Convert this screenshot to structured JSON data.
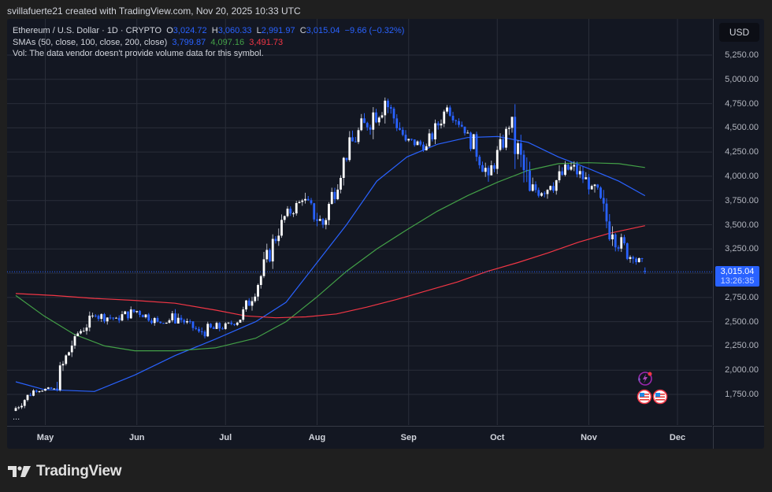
{
  "credit": "svillafuerte21 created with TradingView.com, Nov 20, 2025 10:33 UTC",
  "legend": {
    "symbol": "Ethereum / U.S. Dollar · 1D · CRYPTO",
    "o_label": "O",
    "o": "3,024.72",
    "h_label": "H",
    "h": "3,060.33",
    "l_label": "L",
    "l": "2,991.97",
    "c_label": "C",
    "c": "3,015.04",
    "change": "−9.66 (−0.32%)",
    "sma_label": "SMAs (50, close, 100, close, 200, close)",
    "sma50": "3,799.87",
    "sma100": "4,097.16",
    "sma200": "3,491.73",
    "vol": "Vol: The data vendor doesn't provide volume data for this symbol."
  },
  "yaxis": {
    "currency": "USD",
    "ticks": [
      "5,250.00",
      "5,000.00",
      "4,750.00",
      "4,500.00",
      "4,250.00",
      "4,000.00",
      "3,750.00",
      "3,500.00",
      "3,250.00",
      "2,750.00",
      "2,500.00",
      "2,250.00",
      "2,000.00",
      "1,750.00"
    ],
    "price_tag": "3,015.04",
    "countdown": "13:26:35"
  },
  "xaxis": {
    "ticks": [
      "May",
      "Jun",
      "Jul",
      "Aug",
      "Sep",
      "Oct",
      "Nov",
      "Dec"
    ]
  },
  "more": "...",
  "footer": {
    "brand": "TradingView"
  },
  "colors": {
    "up": "#ffffff",
    "down": "#2962ff",
    "sma50": "#2962ff",
    "sma100": "#43a047",
    "sma200": "#f23645",
    "background": "#131722",
    "grid": "#2a2e39"
  },
  "chart_data": {
    "type": "candlestick",
    "title": "Ethereum / U.S. Dollar · 1D · CRYPTO",
    "ylabel": "USD",
    "ylim": [
      1600,
      5400
    ],
    "grid": true,
    "x_ticks": [
      "May",
      "Jun",
      "Jul",
      "Aug",
      "Sep",
      "Oct",
      "Nov",
      "Dec"
    ],
    "y_ticks": [
      1750,
      2000,
      2250,
      2500,
      2750,
      3000,
      3250,
      3500,
      3750,
      4000,
      4250,
      4500,
      4750,
      5000,
      5250
    ],
    "last": {
      "open": 3024.72,
      "high": 3060.33,
      "low": 2991.97,
      "close": 3015.04,
      "change": -9.66,
      "change_pct": -0.32
    },
    "legend": [
      "SMA 50 (3,799.87)",
      "SMA 100 (4,097.16)",
      "SMA 200 (3,491.73)"
    ],
    "ohlc_weekly_approx": [
      {
        "date": "2025-04-21",
        "open": 1580,
        "high": 1820,
        "low": 1560,
        "close": 1790
      },
      {
        "date": "2025-04-28",
        "open": 1790,
        "high": 1860,
        "low": 1760,
        "close": 1810
      },
      {
        "date": "2025-05-05",
        "open": 1810,
        "high": 2410,
        "low": 1780,
        "close": 2350
      },
      {
        "date": "2025-05-12",
        "open": 2350,
        "high": 2730,
        "low": 2350,
        "close": 2560
      },
      {
        "date": "2025-05-19",
        "open": 2560,
        "high": 2720,
        "low": 2440,
        "close": 2540
      },
      {
        "date": "2025-05-26",
        "open": 2540,
        "high": 2790,
        "low": 2480,
        "close": 2610
      },
      {
        "date": "2025-06-02",
        "open": 2610,
        "high": 2700,
        "low": 2440,
        "close": 2500
      },
      {
        "date": "2025-06-09",
        "open": 2500,
        "high": 2880,
        "low": 2480,
        "close": 2540
      },
      {
        "date": "2025-06-16",
        "open": 2540,
        "high": 2600,
        "low": 2350,
        "close": 2400
      },
      {
        "date": "2025-06-23",
        "open": 2400,
        "high": 2500,
        "low": 2120,
        "close": 2430
      },
      {
        "date": "2025-06-30",
        "open": 2430,
        "high": 2560,
        "low": 2370,
        "close": 2520
      },
      {
        "date": "2025-07-07",
        "open": 2520,
        "high": 3000,
        "low": 2500,
        "close": 2970
      },
      {
        "date": "2025-07-14",
        "open": 2970,
        "high": 3620,
        "low": 2950,
        "close": 3550
      },
      {
        "date": "2025-07-21",
        "open": 3550,
        "high": 3860,
        "low": 3500,
        "close": 3750
      },
      {
        "date": "2025-07-28",
        "open": 3750,
        "high": 3940,
        "low": 3360,
        "close": 3500
      },
      {
        "date": "2025-08-04",
        "open": 3500,
        "high": 4200,
        "low": 3450,
        "close": 4190
      },
      {
        "date": "2025-08-11",
        "open": 4190,
        "high": 4780,
        "low": 4150,
        "close": 4550
      },
      {
        "date": "2025-08-18",
        "open": 4550,
        "high": 4950,
        "low": 4080,
        "close": 4780
      },
      {
        "date": "2025-08-25",
        "open": 4780,
        "high": 4800,
        "low": 4220,
        "close": 4370
      },
      {
        "date": "2025-09-01",
        "open": 4370,
        "high": 4500,
        "low": 4200,
        "close": 4310
      },
      {
        "date": "2025-09-08",
        "open": 4310,
        "high": 4760,
        "low": 4300,
        "close": 4710
      },
      {
        "date": "2025-09-15",
        "open": 4710,
        "high": 4760,
        "low": 4420,
        "close": 4450
      },
      {
        "date": "2025-09-22",
        "open": 4450,
        "high": 4460,
        "low": 3830,
        "close": 4010
      },
      {
        "date": "2025-09-29",
        "open": 4010,
        "high": 4560,
        "low": 3990,
        "close": 4500
      },
      {
        "date": "2025-10-06",
        "open": 4500,
        "high": 4750,
        "low": 3440,
        "close": 3850
      },
      {
        "date": "2025-10-13",
        "open": 3850,
        "high": 4290,
        "low": 3700,
        "close": 3900
      },
      {
        "date": "2025-10-20",
        "open": 3900,
        "high": 4250,
        "low": 3700,
        "close": 4100
      },
      {
        "date": "2025-10-27",
        "open": 4100,
        "high": 4250,
        "low": 3800,
        "close": 3900
      },
      {
        "date": "2025-11-03",
        "open": 3900,
        "high": 3920,
        "low": 3060,
        "close": 3400
      },
      {
        "date": "2025-11-10",
        "open": 3400,
        "high": 3660,
        "low": 3100,
        "close": 3150
      },
      {
        "date": "2025-11-17",
        "open": 3150,
        "high": 3200,
        "low": 2870,
        "close": 3015
      }
    ],
    "series": [
      {
        "name": "SMA 50",
        "color": "#2962ff",
        "points": [
          [
            1,
            1880
          ],
          [
            15,
            1800
          ],
          [
            40,
            1780
          ],
          [
            60,
            1950
          ],
          [
            80,
            2150
          ],
          [
            100,
            2320
          ],
          [
            120,
            2500
          ],
          [
            135,
            2700
          ],
          [
            150,
            3100
          ],
          [
            165,
            3500
          ],
          [
            180,
            3950
          ],
          [
            195,
            4200
          ],
          [
            210,
            4330
          ],
          [
            225,
            4400
          ],
          [
            240,
            4410
          ],
          [
            255,
            4350
          ],
          [
            270,
            4200
          ],
          [
            285,
            4080
          ],
          [
            300,
            3950
          ],
          [
            313,
            3800
          ]
        ]
      },
      {
        "name": "SMA 100",
        "color": "#43a047",
        "points": [
          [
            1,
            2770
          ],
          [
            15,
            2560
          ],
          [
            30,
            2370
          ],
          [
            45,
            2250
          ],
          [
            60,
            2200
          ],
          [
            80,
            2200
          ],
          [
            100,
            2230
          ],
          [
            120,
            2330
          ],
          [
            135,
            2500
          ],
          [
            150,
            2750
          ],
          [
            165,
            3020
          ],
          [
            180,
            3250
          ],
          [
            195,
            3450
          ],
          [
            210,
            3640
          ],
          [
            225,
            3800
          ],
          [
            240,
            3940
          ],
          [
            255,
            4060
          ],
          [
            270,
            4130
          ],
          [
            285,
            4140
          ],
          [
            300,
            4130
          ],
          [
            313,
            4090
          ]
        ]
      },
      {
        "name": "SMA 200",
        "color": "#f23645",
        "points": [
          [
            1,
            2790
          ],
          [
            20,
            2770
          ],
          [
            40,
            2740
          ],
          [
            60,
            2720
          ],
          [
            80,
            2690
          ],
          [
            100,
            2620
          ],
          [
            115,
            2560
          ],
          [
            130,
            2540
          ],
          [
            145,
            2550
          ],
          [
            160,
            2580
          ],
          [
            175,
            2650
          ],
          [
            190,
            2730
          ],
          [
            205,
            2820
          ],
          [
            220,
            2910
          ],
          [
            235,
            3020
          ],
          [
            250,
            3110
          ],
          [
            265,
            3210
          ],
          [
            280,
            3320
          ],
          [
            295,
            3410
          ],
          [
            313,
            3490
          ]
        ]
      }
    ]
  }
}
